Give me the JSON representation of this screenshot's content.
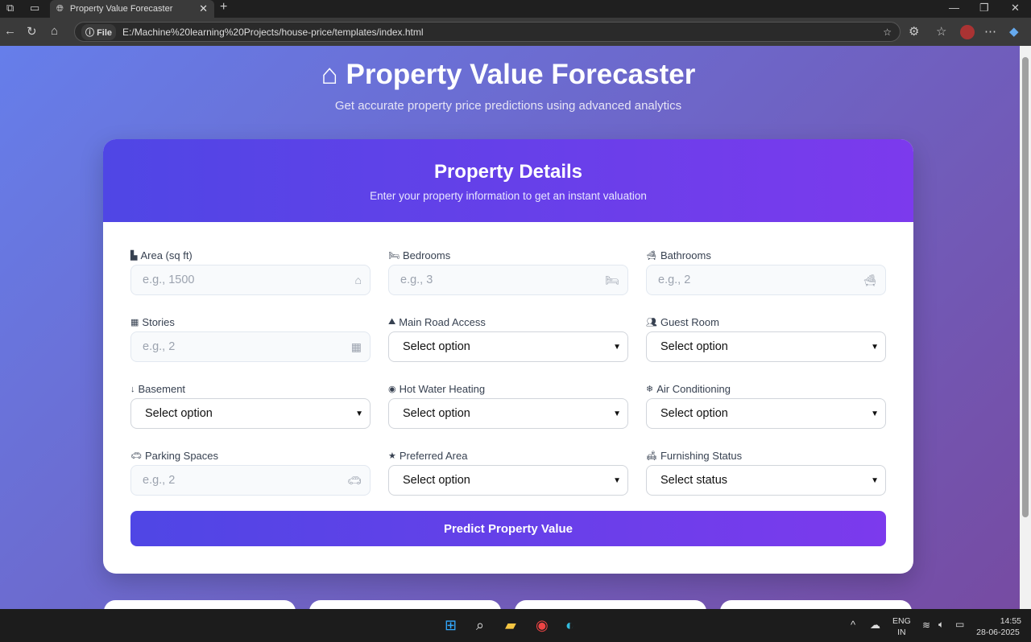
{
  "browser": {
    "tab_title": "Property Value Forecaster",
    "url_scheme": "File",
    "url": "E:/Machine%20learning%20Projects/house-price/templates/index.html"
  },
  "header": {
    "title": "Property Value Forecaster",
    "subtitle": "Get accurate property price predictions using advanced analytics"
  },
  "card": {
    "title": "Property Details",
    "subtitle": "Enter your property information to get an instant valuation"
  },
  "fields": [
    {
      "label": "Area (sq ft)",
      "type": "input",
      "placeholder": "e.g., 1500",
      "icon": "ruler-icon",
      "right_icon": "home-icon"
    },
    {
      "label": "Bedrooms",
      "type": "input",
      "placeholder": "e.g., 3",
      "icon": "bed-icon",
      "right_icon": "bed-icon"
    },
    {
      "label": "Bathrooms",
      "type": "input",
      "placeholder": "e.g., 2",
      "icon": "bath-icon",
      "right_icon": "bath-icon"
    },
    {
      "label": "Stories",
      "type": "input",
      "placeholder": "e.g., 2",
      "icon": "building-icon",
      "right_icon": "building-icon"
    },
    {
      "label": "Main Road Access",
      "type": "select",
      "value": "Select option",
      "icon": "road-icon"
    },
    {
      "label": "Guest Room",
      "type": "select",
      "value": "Select option",
      "icon": "users-icon"
    },
    {
      "label": "Basement",
      "type": "select",
      "value": "Select option",
      "icon": "arrow-down-icon"
    },
    {
      "label": "Hot Water Heating",
      "type": "select",
      "value": "Select option",
      "icon": "fire-icon"
    },
    {
      "label": "Air Conditioning",
      "type": "select",
      "value": "Select option",
      "icon": "snowflake-icon"
    },
    {
      "label": "Parking Spaces",
      "type": "input",
      "placeholder": "e.g., 2",
      "icon": "car-icon",
      "right_icon": "car-icon"
    },
    {
      "label": "Preferred Area",
      "type": "select",
      "value": "Select option",
      "icon": "star-icon"
    },
    {
      "label": "Furnishing Status",
      "type": "select",
      "value": "Select status",
      "icon": "couch-icon"
    }
  ],
  "predict_button": "Predict Property Value",
  "taskbar": {
    "lang": "ENG",
    "region": "IN",
    "time": "14:55",
    "date": "28-06-2025"
  },
  "colors": {
    "bg_start": "#667eea",
    "bg_end": "#764ba2",
    "accent_start": "#4f46e5",
    "accent_end": "#7c3aed"
  }
}
